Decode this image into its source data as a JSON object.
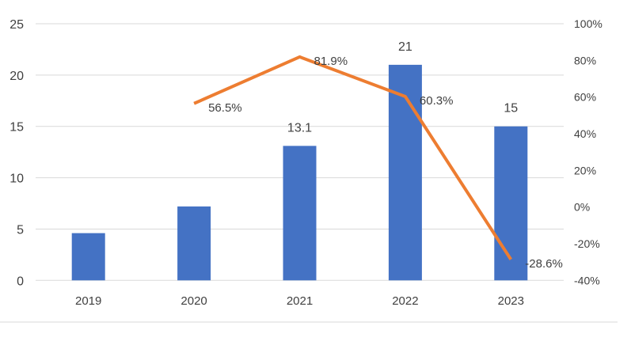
{
  "chart_data": {
    "type": "bar",
    "categories": [
      "2019",
      "2020",
      "2021",
      "2022",
      "2023"
    ],
    "series": [
      {
        "kind": "bar",
        "axis": "left",
        "values": [
          4.6,
          7.2,
          13.1,
          21,
          15
        ],
        "labels": [
          "",
          "",
          "13.1",
          "21",
          "15"
        ],
        "color": "#4472C4"
      },
      {
        "kind": "line",
        "axis": "right",
        "values": [
          null,
          56.5,
          81.9,
          60.3,
          -28.6
        ],
        "labels": [
          "",
          "56.5%",
          "81.9%",
          "60.3%",
          "-28.6%"
        ],
        "color": "#ED7D31"
      }
    ],
    "ylim": [
      0,
      25
    ],
    "yticks": [
      "0",
      "5",
      "10",
      "15",
      "20",
      "25"
    ],
    "y2lim": [
      -40,
      100
    ],
    "y2ticks": [
      "-40%",
      "-20%",
      "0%",
      "20%",
      "40%",
      "60%",
      "80%",
      "100%"
    ],
    "grid": true,
    "legend": "none"
  }
}
